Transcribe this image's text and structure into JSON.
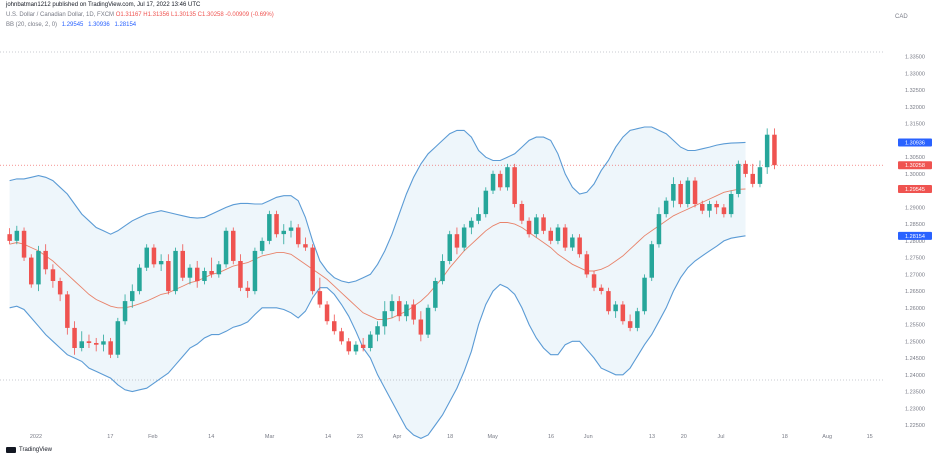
{
  "header": {
    "published": "johnbatman1212 published on TradingView.com, Jul 17, 2022 13:46 UTC"
  },
  "legend": {
    "symbol": "U.S. Dollar / Canadian Dollar, 1D, FXCM",
    "ohlc": "O1.31167 H1.31356 L1.30135 C1.30258 -0.00909 (-0.69%)",
    "bb_label": "BB (20, close, 2, 0)",
    "bb_values": [
      "1.29545",
      "1.30936",
      "1.28154"
    ]
  },
  "currency": "CAD",
  "colors": {
    "up": "#26a69a",
    "down": "#ef5350",
    "band": "#5b9bd5",
    "basis": "#e8836b",
    "fill": "#eef6fb",
    "price_label": "#ef5350",
    "band_label": "#2962ff",
    "basis_label": "#ef5350"
  },
  "chart_data": {
    "type": "candlestick",
    "ylim": [
      1.225,
      1.34
    ],
    "y_ticks": [
      "1.33500",
      "1.33000",
      "1.32500",
      "1.32000",
      "1.31500",
      "1.31000",
      "1.30500",
      "1.30000",
      "1.29500",
      "1.29000",
      "1.28500",
      "1.28000",
      "1.27500",
      "1.27000",
      "1.26500",
      "1.26000",
      "1.25500",
      "1.25000",
      "1.24500",
      "1.24000",
      "1.23500",
      "1.23000",
      "1.22500"
    ],
    "x_ticks": [
      "2022",
      "17",
      "Feb",
      "14",
      "Mar",
      "14",
      "23",
      "Apr",
      "18",
      "May",
      "16",
      "Jun",
      "13",
      "20",
      "Jul",
      "18",
      "Aug",
      "15"
    ],
    "price_labels": [
      {
        "text": "1.30936",
        "kind": "upper"
      },
      {
        "text": "1.30258",
        "kind": "price"
      },
      {
        "text": "1.29545",
        "kind": "basis"
      },
      {
        "text": "1.28154",
        "kind": "lower"
      }
    ],
    "candles": [
      [
        1.282,
        1.2838,
        1.279,
        1.28
      ],
      [
        1.28,
        1.2845,
        1.279,
        1.283
      ],
      [
        1.283,
        1.284,
        1.274,
        1.275
      ],
      [
        1.275,
        1.276,
        1.266,
        1.267
      ],
      [
        1.267,
        1.2785,
        1.265,
        1.277
      ],
      [
        1.277,
        1.279,
        1.27,
        1.2715
      ],
      [
        1.2715,
        1.273,
        1.266,
        1.268
      ],
      [
        1.268,
        1.269,
        1.262,
        1.264
      ],
      [
        1.264,
        1.265,
        1.252,
        1.254
      ],
      [
        1.254,
        1.256,
        1.246,
        1.248
      ],
      [
        1.248,
        1.253,
        1.247,
        1.25
      ],
      [
        1.25,
        1.252,
        1.248,
        1.2495
      ],
      [
        1.2495,
        1.251,
        1.247,
        1.249
      ],
      [
        1.249,
        1.252,
        1.247,
        1.25
      ],
      [
        1.25,
        1.251,
        1.245,
        1.246
      ],
      [
        1.246,
        1.257,
        1.245,
        1.256
      ],
      [
        1.256,
        1.264,
        1.255,
        1.262
      ],
      [
        1.262,
        1.267,
        1.26,
        1.265
      ],
      [
        1.265,
        1.273,
        1.264,
        1.272
      ],
      [
        1.272,
        1.279,
        1.271,
        1.278
      ],
      [
        1.278,
        1.279,
        1.272,
        1.273
      ],
      [
        1.273,
        1.276,
        1.271,
        1.274
      ],
      [
        1.274,
        1.276,
        1.264,
        1.265
      ],
      [
        1.265,
        1.278,
        1.264,
        1.277
      ],
      [
        1.277,
        1.279,
        1.268,
        1.269
      ],
      [
        1.269,
        1.273,
        1.267,
        1.272
      ],
      [
        1.272,
        1.274,
        1.266,
        1.268
      ],
      [
        1.268,
        1.272,
        1.267,
        1.271
      ],
      [
        1.271,
        1.275,
        1.269,
        1.27
      ],
      [
        1.27,
        1.274,
        1.269,
        1.273
      ],
      [
        1.273,
        1.284,
        1.272,
        1.283
      ],
      [
        1.283,
        1.284,
        1.273,
        1.274
      ],
      [
        1.274,
        1.276,
        1.265,
        1.266
      ],
      [
        1.266,
        1.268,
        1.263,
        1.265
      ],
      [
        1.265,
        1.278,
        1.264,
        1.277
      ],
      [
        1.277,
        1.281,
        1.276,
        1.28
      ],
      [
        1.28,
        1.289,
        1.279,
        1.288
      ],
      [
        1.288,
        1.289,
        1.281,
        1.282
      ],
      [
        1.282,
        1.285,
        1.279,
        1.283
      ],
      [
        1.283,
        1.286,
        1.281,
        1.284
      ],
      [
        1.284,
        1.285,
        1.278,
        1.279
      ],
      [
        1.279,
        1.281,
        1.277,
        1.278
      ],
      [
        1.278,
        1.279,
        1.264,
        1.265
      ],
      [
        1.265,
        1.269,
        1.26,
        1.261
      ],
      [
        1.261,
        1.262,
        1.255,
        1.256
      ],
      [
        1.256,
        1.258,
        1.252,
        1.253
      ],
      [
        1.253,
        1.254,
        1.249,
        1.25
      ],
      [
        1.25,
        1.251,
        1.246,
        1.247
      ],
      [
        1.247,
        1.25,
        1.246,
        1.249
      ],
      [
        1.249,
        1.251,
        1.247,
        1.248
      ],
      [
        1.248,
        1.253,
        1.247,
        1.252
      ],
      [
        1.252,
        1.256,
        1.25,
        1.2545
      ],
      [
        1.2545,
        1.262,
        1.252,
        1.259
      ],
      [
        1.259,
        1.264,
        1.257,
        1.262
      ],
      [
        1.262,
        1.2635,
        1.256,
        1.2575
      ],
      [
        1.2575,
        1.262,
        1.256,
        1.261
      ],
      [
        1.261,
        1.2625,
        1.255,
        1.2565
      ],
      [
        1.2565,
        1.259,
        1.25,
        1.252
      ],
      [
        1.252,
        1.261,
        1.251,
        1.26
      ],
      [
        1.26,
        1.269,
        1.259,
        1.268
      ],
      [
        1.268,
        1.276,
        1.267,
        1.274
      ],
      [
        1.274,
        1.283,
        1.273,
        1.282
      ],
      [
        1.282,
        1.284,
        1.276,
        1.278
      ],
      [
        1.278,
        1.285,
        1.277,
        1.284
      ],
      [
        1.284,
        1.287,
        1.282,
        1.286
      ],
      [
        1.286,
        1.29,
        1.285,
        1.288
      ],
      [
        1.288,
        1.296,
        1.287,
        1.295
      ],
      [
        1.295,
        1.301,
        1.294,
        1.3
      ],
      [
        1.3,
        1.301,
        1.295,
        1.296
      ],
      [
        1.296,
        1.303,
        1.295,
        1.302
      ],
      [
        1.302,
        1.303,
        1.29,
        1.291
      ],
      [
        1.291,
        1.292,
        1.285,
        1.286
      ],
      [
        1.286,
        1.287,
        1.281,
        1.282
      ],
      [
        1.282,
        1.288,
        1.281,
        1.287
      ],
      [
        1.287,
        1.288,
        1.282,
        1.283
      ],
      [
        1.283,
        1.284,
        1.279,
        1.28
      ],
      [
        1.28,
        1.285,
        1.279,
        1.284
      ],
      [
        1.284,
        1.285,
        1.277,
        1.278
      ],
      [
        1.278,
        1.282,
        1.277,
        1.281
      ],
      [
        1.281,
        1.282,
        1.275,
        1.276
      ],
      [
        1.276,
        1.277,
        1.269,
        1.27
      ],
      [
        1.27,
        1.271,
        1.265,
        1.266
      ],
      [
        1.266,
        1.267,
        1.264,
        1.265
      ],
      [
        1.265,
        1.266,
        1.258,
        1.259
      ],
      [
        1.259,
        1.262,
        1.257,
        1.261
      ],
      [
        1.261,
        1.262,
        1.255,
        1.256
      ],
      [
        1.256,
        1.258,
        1.253,
        1.254
      ],
      [
        1.254,
        1.26,
        1.253,
        1.259
      ],
      [
        1.259,
        1.27,
        1.258,
        1.269
      ],
      [
        1.269,
        1.28,
        1.268,
        1.279
      ],
      [
        1.279,
        1.29,
        1.278,
        1.288
      ],
      [
        1.288,
        1.293,
        1.287,
        1.292
      ],
      [
        1.292,
        1.299,
        1.29,
        1.297
      ],
      [
        1.297,
        1.298,
        1.29,
        1.291
      ],
      [
        1.291,
        1.299,
        1.29,
        1.298
      ],
      [
        1.298,
        1.299,
        1.29,
        1.291
      ],
      [
        1.291,
        1.292,
        1.288,
        1.289
      ],
      [
        1.289,
        1.292,
        1.287,
        1.291
      ],
      [
        1.291,
        1.292,
        1.288,
        1.29
      ],
      [
        1.29,
        1.291,
        1.287,
        1.288
      ],
      [
        1.288,
        1.295,
        1.287,
        1.294
      ],
      [
        1.294,
        1.304,
        1.293,
        1.303
      ],
      [
        1.303,
        1.304,
        1.299,
        1.3
      ],
      [
        1.3,
        1.303,
        1.296,
        1.297
      ],
      [
        1.297,
        1.304,
        1.296,
        1.302
      ],
      [
        1.302,
        1.3136,
        1.3,
        1.3117
      ],
      [
        1.3117,
        1.3136,
        1.3014,
        1.3026
      ]
    ],
    "basis": [
      1.279,
      1.2795,
      1.279,
      1.278,
      1.277,
      1.2755,
      1.274,
      1.272,
      1.27,
      1.268,
      1.266,
      1.264,
      1.2625,
      1.2615,
      1.2605,
      1.26,
      1.26,
      1.2605,
      1.2612,
      1.262,
      1.263,
      1.264,
      1.2645,
      1.2655,
      1.2665,
      1.2675,
      1.268,
      1.269,
      1.27,
      1.2705,
      1.2715,
      1.2725,
      1.273,
      1.2735,
      1.2745,
      1.2755,
      1.276,
      1.2765,
      1.2765,
      1.276,
      1.2745,
      1.273,
      1.2715,
      1.27,
      1.2685,
      1.2665,
      1.2645,
      1.2625,
      1.2605,
      1.2585,
      1.2575,
      1.2565,
      1.2565,
      1.257,
      1.258,
      1.259,
      1.2605,
      1.262,
      1.264,
      1.2665,
      1.269,
      1.272,
      1.2745,
      1.277,
      1.279,
      1.281,
      1.283,
      1.2845,
      1.2855,
      1.2855,
      1.285,
      1.284,
      1.2825,
      1.281,
      1.2795,
      1.278,
      1.276,
      1.2745,
      1.273,
      1.272,
      1.271,
      1.271,
      1.2715,
      1.2725,
      1.274,
      1.2755,
      1.2775,
      1.2795,
      1.2815,
      1.283,
      1.2845,
      1.286,
      1.2875,
      1.2885,
      1.2895,
      1.2905,
      1.2915,
      1.2925,
      1.2935,
      1.2945,
      1.295,
      1.2954,
      1.2955
    ],
    "upper": [
      1.298,
      1.2985,
      1.2985,
      1.299,
      1.2995,
      1.299,
      1.298,
      1.296,
      1.294,
      1.291,
      1.288,
      1.286,
      1.284,
      1.283,
      1.282,
      1.283,
      1.2845,
      1.286,
      1.287,
      1.288,
      1.2885,
      1.289,
      1.2885,
      1.288,
      1.2875,
      1.287,
      1.2868,
      1.287,
      1.288,
      1.289,
      1.29,
      1.2908,
      1.2912,
      1.2912,
      1.291,
      1.291,
      1.292,
      1.293,
      1.2935,
      1.2935,
      1.292,
      1.287,
      1.28,
      1.274,
      1.271,
      1.269,
      1.268,
      1.2675,
      1.268,
      1.269,
      1.27,
      1.273,
      1.277,
      1.282,
      1.288,
      1.294,
      1.299,
      1.303,
      1.306,
      1.308,
      1.31,
      1.312,
      1.313,
      1.313,
      1.311,
      1.307,
      1.305,
      1.304,
      1.304,
      1.305,
      1.306,
      1.308,
      1.31,
      1.311,
      1.311,
      1.31,
      1.306,
      1.3,
      1.296,
      1.294,
      1.2945,
      1.297,
      1.301,
      1.304,
      1.308,
      1.311,
      1.313,
      1.3135,
      1.314,
      1.314,
      1.313,
      1.312,
      1.31,
      1.308,
      1.307,
      1.307,
      1.3075,
      1.308,
      1.3086,
      1.309,
      1.3092,
      1.3093,
      1.3094
    ],
    "lower": [
      1.26,
      1.2605,
      1.2595,
      1.257,
      1.2545,
      1.252,
      1.25,
      1.248,
      1.246,
      1.245,
      1.244,
      1.242,
      1.241,
      1.24,
      1.239,
      1.237,
      1.2355,
      1.235,
      1.2355,
      1.236,
      1.2375,
      1.239,
      1.2405,
      1.243,
      1.2455,
      1.248,
      1.2492,
      1.251,
      1.252,
      1.252,
      1.253,
      1.2542,
      1.2548,
      1.2558,
      1.258,
      1.26,
      1.26,
      1.26,
      1.2595,
      1.2585,
      1.257,
      1.259,
      1.263,
      1.266,
      1.266,
      1.264,
      1.261,
      1.2575,
      1.253,
      1.248,
      1.245,
      1.24,
      1.236,
      1.232,
      1.228,
      1.224,
      1.222,
      1.221,
      1.222,
      1.225,
      1.228,
      1.232,
      1.236,
      1.241,
      1.247,
      1.255,
      1.261,
      1.265,
      1.267,
      1.266,
      1.264,
      1.26,
      1.255,
      1.251,
      1.248,
      1.246,
      1.246,
      1.249,
      1.25,
      1.25,
      1.2475,
      1.245,
      1.242,
      1.241,
      1.24,
      1.24,
      1.242,
      1.2455,
      1.249,
      1.252,
      1.256,
      1.26,
      1.265,
      1.269,
      1.272,
      1.274,
      1.2755,
      1.277,
      1.2784,
      1.28,
      1.2808,
      1.2812,
      1.2815
    ]
  }
}
